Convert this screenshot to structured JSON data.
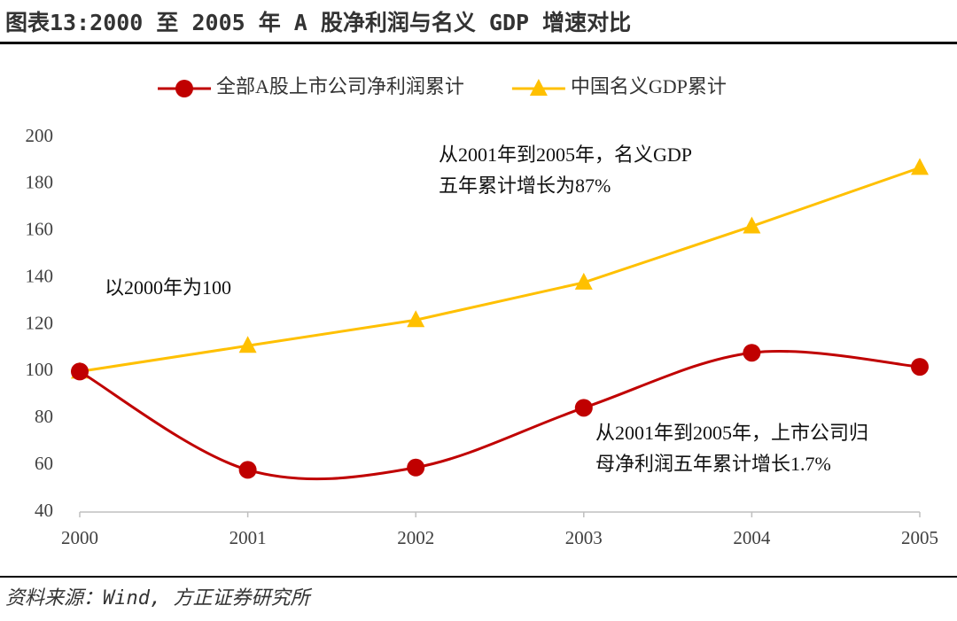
{
  "chart_data": {
    "type": "line",
    "title": "图表13:2000 至 2005 年 A 股净利润与名义 GDP 增速对比",
    "source": "资料来源：Wind, 方正证券研究所",
    "categories": [
      "2000",
      "2001",
      "2002",
      "2003",
      "2004",
      "2005"
    ],
    "series": [
      {
        "name": "全部A股上市公司净利润累计",
        "color": "#c00000",
        "marker": "circle",
        "smooth": true,
        "values": [
          100,
          58,
          59,
          84.5,
          108,
          102
        ]
      },
      {
        "name": "中国名义GDP累计",
        "color": "#ffc000",
        "marker": "triangle",
        "smooth": false,
        "values": [
          100,
          111,
          122,
          138,
          162,
          187
        ]
      }
    ],
    "annotations": [
      {
        "lines": [
          "从2001年到2005年，名义GDP",
          "五年累计增长为87%"
        ]
      },
      {
        "lines": [
          "以2000年为100"
        ]
      },
      {
        "lines": [
          "从2001年到2005年，上市公司归",
          "母净利润五年累计增长1.7%"
        ]
      }
    ],
    "ylim": [
      40,
      200
    ],
    "yticks": [
      40,
      60,
      80,
      100,
      120,
      140,
      160,
      180,
      200
    ],
    "grid": false,
    "legend": "top"
  }
}
